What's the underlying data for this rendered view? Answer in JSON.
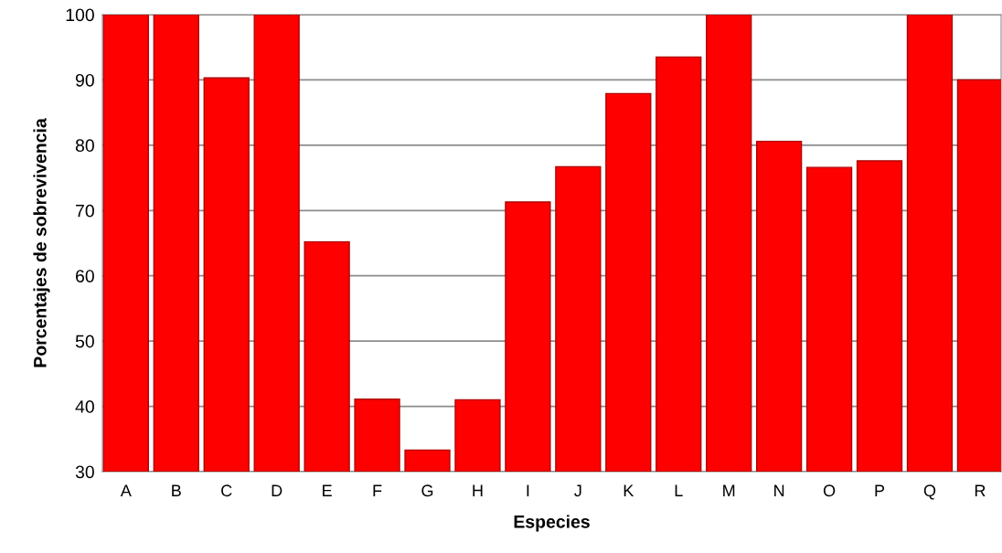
{
  "chart_data": {
    "type": "bar",
    "xlabel": "Especies",
    "ylabel": "Porcentajes de sobrevivencia",
    "categories": [
      "A",
      "B",
      "C",
      "D",
      "E",
      "F",
      "G",
      "H",
      "I",
      "J",
      "K",
      "L",
      "M",
      "N",
      "O",
      "P",
      "Q",
      "R"
    ],
    "values": [
      100,
      100,
      90.3,
      100,
      65.2,
      41.1,
      33.3,
      41,
      71.3,
      76.7,
      87.9,
      93.5,
      100,
      80.6,
      76.6,
      77.6,
      100,
      90
    ],
    "color": "#ff0000",
    "ylim": [
      30,
      100
    ],
    "yticks": [
      30,
      40,
      50,
      60,
      70,
      80,
      90,
      100
    ],
    "grid": "y",
    "legend": false
  }
}
